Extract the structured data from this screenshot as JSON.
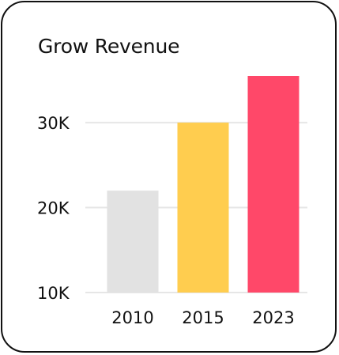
{
  "card": {
    "title": "Grow Revenue"
  },
  "colors": {
    "grid": "#e6e6e6",
    "text": "#111111",
    "border": "#111111"
  },
  "chart_data": {
    "type": "bar",
    "title": "Grow Revenue",
    "xlabel": "",
    "ylabel": "",
    "categories": [
      "2010",
      "2015",
      "2023"
    ],
    "values": [
      22000,
      30000,
      35500
    ],
    "bar_colors": [
      "#e2e2e2",
      "#ffcd4f",
      "#ff4869"
    ],
    "yticks": [
      10000,
      20000,
      30000
    ],
    "ytick_labels": [
      "10K",
      "20K",
      "30K"
    ],
    "ylim": [
      10000,
      35500
    ],
    "grid": true
  }
}
